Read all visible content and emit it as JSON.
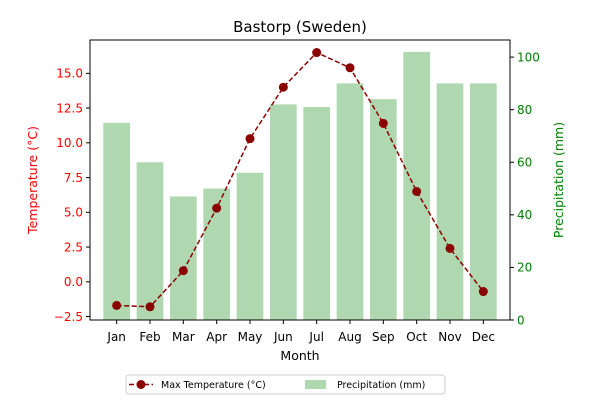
{
  "chart_data": {
    "type": "bar+line",
    "title": "Bastorp (Sweden)",
    "xlabel": "Month",
    "ylabel_left": "Temperature (°C)",
    "ylabel_right": "Precipitation (mm)",
    "categories": [
      "Jan",
      "Feb",
      "Mar",
      "Apr",
      "May",
      "Jun",
      "Jul",
      "Aug",
      "Sep",
      "Oct",
      "Nov",
      "Dec"
    ],
    "series": [
      {
        "name": "Max Temperature (°C)",
        "type": "line",
        "axis": "left",
        "values": [
          -1.7,
          -1.8,
          0.8,
          5.3,
          10.3,
          14.0,
          16.5,
          15.4,
          11.4,
          6.5,
          2.4,
          -0.7
        ]
      },
      {
        "name": "Precipitation (mm)",
        "type": "bar",
        "axis": "right",
        "values": [
          75,
          60,
          47,
          50,
          56,
          82,
          81,
          90,
          84,
          102,
          90,
          90
        ]
      }
    ],
    "ylim_left": [
      -2.75,
      17.4
    ],
    "ylim_right": [
      0,
      106.5
    ],
    "yticks_left": [
      "−2.5",
      "0.0",
      "2.5",
      "5.0",
      "7.5",
      "10.0",
      "12.5",
      "15.0"
    ],
    "yticks_right": [
      "0",
      "20",
      "40",
      "60",
      "80",
      "100"
    ],
    "grid": false,
    "legend_position": "bottom-center",
    "colors": {
      "line": "#8b0000",
      "bar": "#b0d8b0",
      "left_axis": "#ff0000",
      "right_axis": "#008000"
    }
  }
}
